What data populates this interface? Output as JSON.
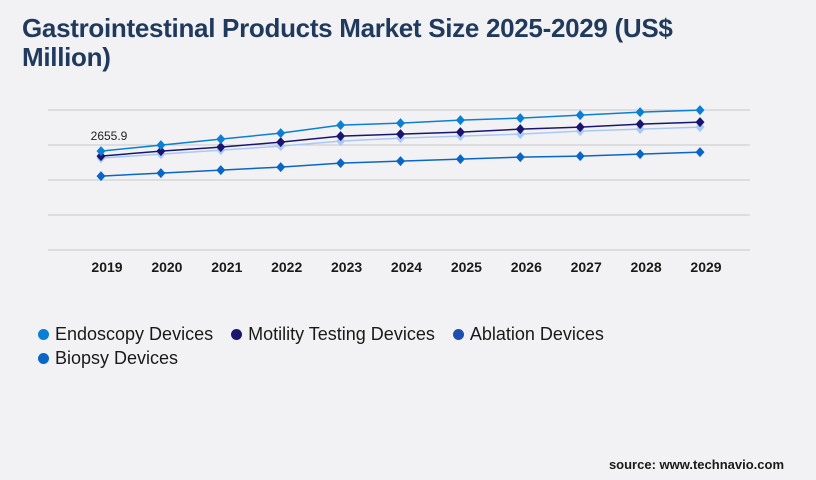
{
  "title": "Gastrointestinal Products Market Size 2025-2029 (US$ Million)",
  "source": "source: www.technavio.com",
  "chart_data": {
    "type": "line",
    "title": "Gastrointestinal Products Market Size 2025-2029 (US$ Million)",
    "x": [
      "2019",
      "2020",
      "2021",
      "2022",
      "2023",
      "2024",
      "2025",
      "2026",
      "2027",
      "2028",
      "2029"
    ],
    "ylim": [
      0,
      3760
    ],
    "grid": true,
    "legend_placement": "bottom",
    "annotation": "2655.9",
    "series": [
      {
        "name": "Endoscopy Devices",
        "color": "#0b7fd4",
        "legend_color": "#0b7fd4",
        "values": [
          2655.9,
          2817,
          2978,
          3139,
          3354,
          3407,
          3488,
          3542,
          3622,
          3703,
          3756
        ]
      },
      {
        "name": "Motility Testing Devices",
        "color": "#1a1670",
        "legend_color": "#1a1670",
        "values": [
          2522,
          2656,
          2763,
          2898,
          3059,
          3112,
          3166,
          3246,
          3300,
          3381,
          3434
        ]
      },
      {
        "name": "Ablation Devices",
        "color": "#a9c9f5",
        "legend_color": "#1e4fb0",
        "values": [
          2468,
          2576,
          2683,
          2790,
          2924,
          3005,
          3059,
          3112,
          3193,
          3246,
          3300
        ]
      },
      {
        "name": "Biopsy Devices",
        "color": "#0a66c6",
        "legend_color": "#0a66c6",
        "values": [
          1985,
          2066,
          2146,
          2227,
          2334,
          2388,
          2442,
          2495,
          2522,
          2576,
          2629
        ]
      }
    ]
  }
}
